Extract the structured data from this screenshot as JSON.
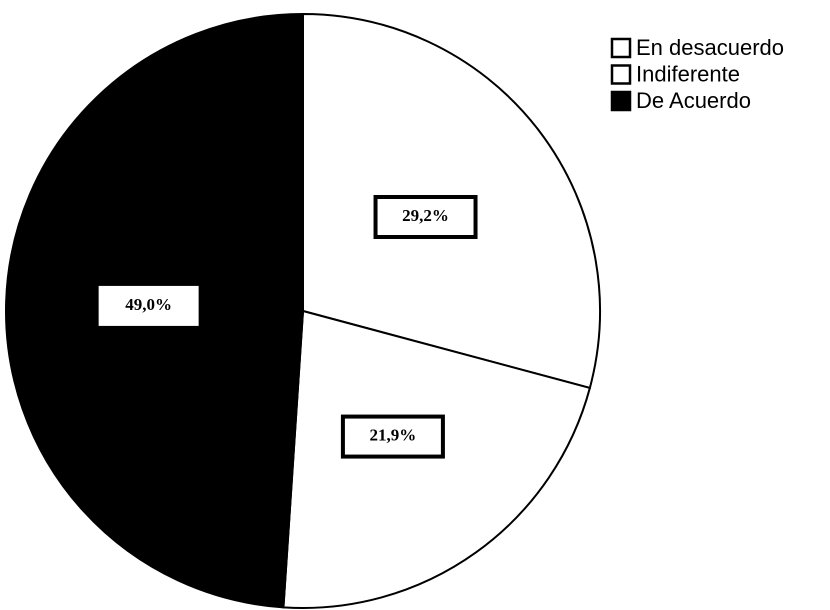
{
  "chart_data": {
    "type": "pie",
    "categories": [
      "En desacuerdo",
      "Indiferente",
      "De Acuerdo"
    ],
    "values": [
      29.2,
      21.9,
      49.0
    ],
    "value_labels": [
      "29,2%",
      "21,9%",
      "49,0%"
    ],
    "colors": [
      "#ffffff",
      "#ffffff",
      "#000000"
    ],
    "legend": "top-right"
  }
}
